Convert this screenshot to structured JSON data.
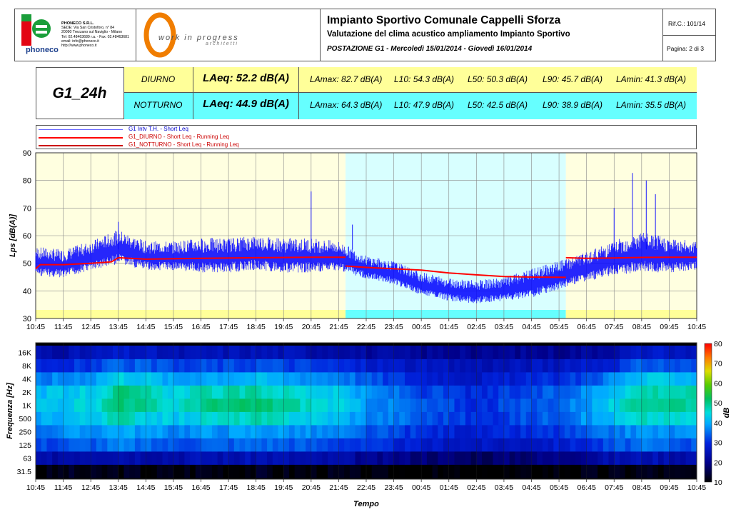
{
  "header": {
    "company_logo_text": "phoneco",
    "company": {
      "name": "PHONECO S.R.L.",
      "lines": [
        "SEDE: Via San Cristoforo, n° 84",
        "20090 Trezzano sul Naviglio - Milano",
        "Tel: 02.48463689 r.a. - Fax: 02.48463681",
        "email: info@phoneco.it",
        "http://www.phoneco.it"
      ]
    },
    "partner_logo_text": "work in progress",
    "partner_logo_sub": "a r c h i t e t t i",
    "title": "Impianto Sportivo Comunale Cappelli Sforza",
    "subtitle": "Valutazione del clima acustico ampliamento Impianto Sportivo",
    "station": "POSTAZIONE G1 - Mercoledì 15/01/2014 - Giovedì 16/01/2014",
    "ref": "Rif.C.: 101/14",
    "page": "Pagina: 2 di 3"
  },
  "summary": {
    "id": "G1_24h",
    "rows": [
      {
        "period": "DIURNO",
        "laeq": "LAeq: 52.2 dB(A)",
        "lamax": "LAmax: 82.7 dB(A)",
        "l10": "L10: 54.3 dB(A)",
        "l50": "L50: 50.3 dB(A)",
        "l90": "L90: 45.7 dB(A)",
        "lamin": "LAmin: 41.3 dB(A)",
        "color": "#ffff99"
      },
      {
        "period": "NOTTURNO",
        "laeq": "LAeq: 44.9 dB(A)",
        "lamax": "LAmax: 64.3 dB(A)",
        "l10": "L10: 47.9 dB(A)",
        "l50": "L50: 42.5 dB(A)",
        "l90": "L90: 38.9 dB(A)",
        "lamin": "LAmin: 35.5 dB(A)",
        "color": "#66ffff"
      }
    ]
  },
  "legend": [
    {
      "label": "G1 Intv T.H. - Short Leq",
      "color": "#3333ff"
    },
    {
      "label": "G1_DIURNO - Short Leq - Running Leq",
      "color": "#ff0000"
    },
    {
      "label": "G1_NOTTURNO - Short Leq - Running Leq",
      "color": "#cc0000"
    }
  ],
  "colors": {
    "day_band": "#ffffe0",
    "night_band": "#d8ffff",
    "day_strip": "#ffff99",
    "night_strip": "#66ffff",
    "short_leq": "#0000ff",
    "running_leq": "#ff0000"
  },
  "chart_data": [
    {
      "type": "line",
      "ylabel": "Lps [dB(A)]",
      "ylim": [
        30,
        90
      ],
      "yticks": [
        30,
        40,
        50,
        60,
        70,
        80,
        90
      ],
      "grid": true,
      "legend_position": "top",
      "x": [
        "10:45",
        "11:45",
        "12:45",
        "13:45",
        "14:45",
        "15:45",
        "16:45",
        "17:45",
        "18:45",
        "19:45",
        "20:45",
        "21:45",
        "22:45",
        "23:45",
        "00:45",
        "01:45",
        "02:45",
        "03:45",
        "04:45",
        "05:45",
        "06:45",
        "07:45",
        "08:45",
        "09:45",
        "10:45"
      ],
      "periods": [
        {
          "name": "DIURNO",
          "from": "10:45",
          "to": "22:00"
        },
        {
          "name": "NOTTURNO",
          "from": "22:00",
          "to": "06:00"
        },
        {
          "name": "DIURNO",
          "from": "06:00",
          "to": "10:45"
        }
      ],
      "series": [
        {
          "name": "G1 Intv T.H. - Short Leq",
          "kind": "envelope",
          "mid": [
            50,
            49,
            52,
            55,
            52,
            52,
            52,
            52,
            53,
            52,
            52,
            52,
            48,
            46,
            42,
            40,
            39,
            40,
            42,
            45,
            48,
            51,
            53,
            52,
            52
          ],
          "spread": [
            5,
            5,
            5,
            6,
            5,
            5,
            6,
            6,
            6,
            6,
            6,
            5,
            4,
            4,
            4,
            4,
            4,
            4,
            5,
            5,
            5,
            6,
            7,
            6,
            5
          ],
          "peaks": [
            {
              "x": "13:45",
              "y": 65
            },
            {
              "x": "20:45",
              "y": 76
            },
            {
              "x": "22:15",
              "y": 64
            },
            {
              "x": "07:45",
              "y": 70
            },
            {
              "x": "08:25",
              "y": 82.7
            },
            {
              "x": "08:55",
              "y": 80
            },
            {
              "x": "09:15",
              "y": 75
            }
          ]
        },
        {
          "name": "G1_DIURNO - Short Leq - Running Leq",
          "points": [
            [
              "10:45",
              48
            ],
            [
              "10:55",
              49.5
            ],
            [
              "11:45",
              49.5
            ],
            [
              "12:45",
              50
            ],
            [
              "13:30",
              50.5
            ],
            [
              "13:45",
              52
            ],
            [
              "14:45",
              51.5
            ],
            [
              "16:45",
              51.8
            ],
            [
              "18:45",
              52
            ],
            [
              "20:45",
              52.2
            ],
            [
              "22:00",
              52.2
            ]
          ]
        },
        {
          "name": "G1_NOTTURNO - Short Leq - Running Leq",
          "points": [
            [
              "22:00",
              49
            ],
            [
              "22:45",
              48.5
            ],
            [
              "23:45",
              48
            ],
            [
              "00:45",
              47.5
            ],
            [
              "01:45",
              46.5
            ],
            [
              "02:45",
              45.8
            ],
            [
              "03:45",
              45.2
            ],
            [
              "04:45",
              45
            ],
            [
              "06:00",
              44.9
            ]
          ]
        },
        {
          "name": "G1_DIURNO - Short Leq - Running Leq",
          "points": [
            [
              "06:00",
              52
            ],
            [
              "06:45",
              51.8
            ],
            [
              "07:45",
              51.9
            ],
            [
              "08:45",
              52.1
            ],
            [
              "09:45",
              52.2
            ],
            [
              "10:45",
              52.2
            ]
          ]
        }
      ]
    },
    {
      "type": "heatmap",
      "xlabel": "Tempo",
      "ylabel": "Frequenza [Hz]",
      "x": [
        "10:45",
        "11:45",
        "12:45",
        "13:45",
        "14:45",
        "15:45",
        "16:45",
        "17:45",
        "18:45",
        "19:45",
        "20:45",
        "21:45",
        "22:45",
        "23:45",
        "00:45",
        "01:45",
        "02:45",
        "03:45",
        "04:45",
        "05:45",
        "06:45",
        "07:45",
        "08:45",
        "09:45",
        "10:45"
      ],
      "y": [
        "31.5",
        "63",
        "125",
        "250",
        "500",
        "1K",
        "2K",
        "4K",
        "8K",
        "16K"
      ],
      "colorbar": {
        "label": "dB",
        "min": 10,
        "max": 80,
        "ticks": [
          10,
          20,
          30,
          40,
          50,
          60,
          70,
          80
        ]
      },
      "values": [
        [
          10,
          12,
          11,
          12,
          11,
          11,
          12,
          11,
          12,
          11,
          11,
          11,
          10,
          10,
          10,
          10,
          8,
          10,
          10,
          11,
          11,
          11,
          12,
          11,
          11
        ],
        [
          22,
          24,
          25,
          25,
          24,
          24,
          25,
          24,
          25,
          24,
          23,
          23,
          20,
          20,
          19,
          18,
          17,
          18,
          19,
          20,
          22,
          24,
          25,
          24,
          24
        ],
        [
          32,
          33,
          34,
          36,
          34,
          33,
          34,
          34,
          35,
          34,
          33,
          32,
          30,
          29,
          27,
          27,
          26,
          26,
          27,
          28,
          30,
          33,
          35,
          34,
          33
        ],
        [
          36,
          37,
          38,
          40,
          38,
          37,
          38,
          38,
          39,
          38,
          37,
          36,
          33,
          32,
          30,
          29,
          28,
          29,
          30,
          31,
          33,
          36,
          38,
          37,
          37
        ],
        [
          40,
          41,
          43,
          48,
          44,
          42,
          45,
          46,
          47,
          45,
          43,
          41,
          37,
          36,
          33,
          32,
          30,
          32,
          33,
          35,
          38,
          42,
          46,
          45,
          44
        ],
        [
          42,
          43,
          45,
          52,
          48,
          45,
          50,
          50,
          51,
          49,
          46,
          43,
          38,
          36,
          33,
          32,
          30,
          32,
          33,
          35,
          39,
          44,
          50,
          50,
          49
        ],
        [
          41,
          42,
          44,
          50,
          47,
          44,
          47,
          47,
          48,
          46,
          44,
          42,
          37,
          35,
          32,
          31,
          29,
          31,
          32,
          34,
          38,
          43,
          48,
          48,
          47
        ],
        [
          36,
          37,
          39,
          44,
          42,
          38,
          40,
          40,
          41,
          39,
          38,
          37,
          33,
          31,
          29,
          28,
          27,
          28,
          29,
          30,
          33,
          38,
          42,
          42,
          41
        ],
        [
          30,
          30,
          31,
          34,
          33,
          31,
          32,
          32,
          33,
          32,
          31,
          30,
          28,
          27,
          26,
          25,
          25,
          25,
          26,
          26,
          27,
          30,
          34,
          33,
          32
        ],
        [
          24,
          24,
          25,
          27,
          26,
          24,
          25,
          25,
          25,
          25,
          24,
          24,
          22,
          22,
          21,
          21,
          20,
          21,
          21,
          21,
          22,
          24,
          27,
          26,
          25
        ]
      ]
    }
  ]
}
